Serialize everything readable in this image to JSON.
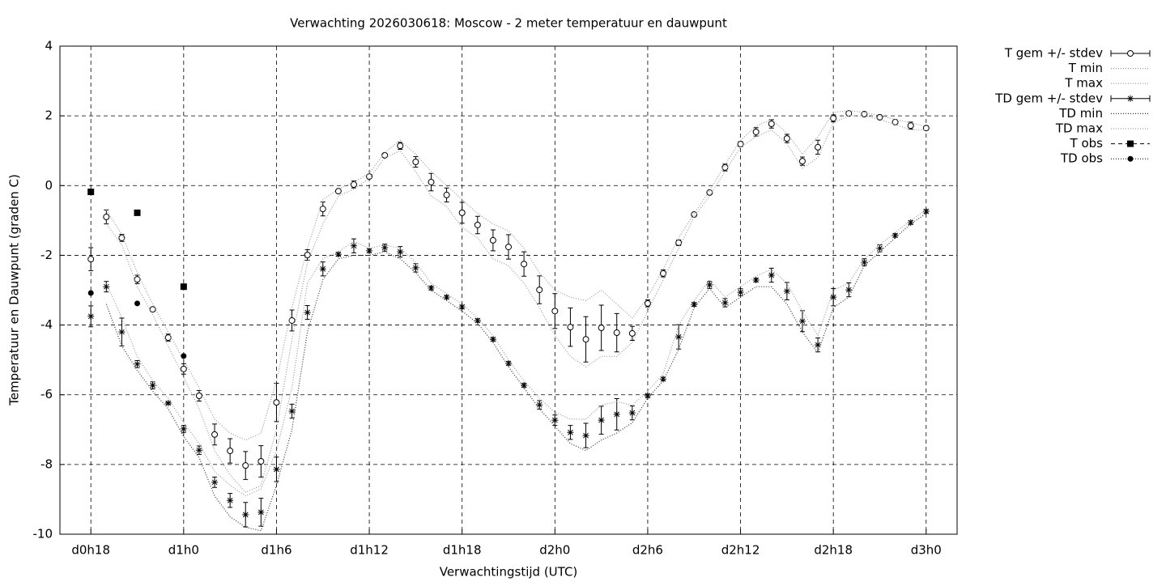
{
  "chart_data": {
    "type": "line",
    "title": "Verwachting 2026030618: Moscow - 2 meter temperatuur en dauwpunt",
    "xlabel": "Verwachtingstijd (UTC)",
    "ylabel": "Temperatuur en Dauwpunt (graden C)",
    "x": [
      18,
      19,
      20,
      21,
      22,
      23,
      24,
      25,
      26,
      27,
      28,
      29,
      30,
      31,
      32,
      33,
      34,
      35,
      36,
      37,
      38,
      39,
      40,
      41,
      42,
      43,
      44,
      45,
      46,
      47,
      48,
      49,
      50,
      51,
      52,
      53,
      54,
      55,
      56,
      57,
      58,
      59,
      60,
      61,
      62,
      63,
      64,
      65,
      66,
      67,
      68,
      69,
      70,
      71,
      72
    ],
    "xlim": [
      16,
      74
    ],
    "xticks": [
      {
        "value": 18,
        "label": "d0h18"
      },
      {
        "value": 24,
        "label": "d1h0"
      },
      {
        "value": 30,
        "label": "d1h6"
      },
      {
        "value": 36,
        "label": "d1h12"
      },
      {
        "value": 42,
        "label": "d1h18"
      },
      {
        "value": 48,
        "label": "d2h0"
      },
      {
        "value": 54,
        "label": "d2h6"
      },
      {
        "value": 60,
        "label": "d2h12"
      },
      {
        "value": 66,
        "label": "d2h18"
      },
      {
        "value": 72,
        "label": "d3h0"
      }
    ],
    "ylim": [
      -10,
      4
    ],
    "yticks": [
      4,
      2,
      0,
      -2,
      -4,
      -6,
      -8,
      -10
    ],
    "grid": true,
    "legend": "outside-right",
    "series": [
      {
        "name": "T gem +/- stdev",
        "color": "#000000",
        "marker": "circle",
        "values": [
          -2.11,
          -0.9,
          -1.5,
          -2.69,
          -3.55,
          -4.36,
          -5.26,
          -6.03,
          -7.14,
          -7.61,
          -8.03,
          -7.91,
          -6.22,
          -3.87,
          -1.99,
          -0.67,
          -0.16,
          0.03,
          0.26,
          0.87,
          1.14,
          0.68,
          0.1,
          -0.27,
          -0.78,
          -1.13,
          -1.57,
          -1.76,
          -2.25,
          -2.99,
          -3.6,
          -4.06,
          -4.41,
          -4.08,
          -4.22,
          -4.24,
          -3.38,
          -2.52,
          -1.64,
          -0.83,
          -0.2,
          0.52,
          1.19,
          1.54,
          1.77,
          1.35,
          0.7,
          1.1,
          1.93,
          2.07,
          2.05,
          1.96,
          1.82,
          1.72,
          1.65
        ],
        "errors": [
          0.33,
          0.2,
          0.1,
          0.12,
          0.05,
          0.1,
          0.15,
          0.15,
          0.3,
          0.35,
          0.4,
          0.45,
          0.55,
          0.3,
          0.15,
          0.2,
          0.05,
          0.1,
          0.05,
          0.05,
          0.1,
          0.15,
          0.25,
          0.2,
          0.3,
          0.25,
          0.3,
          0.35,
          0.35,
          0.4,
          0.5,
          0.55,
          0.65,
          0.65,
          0.55,
          0.2,
          0.1,
          0.1,
          0.08,
          0.03,
          0.03,
          0.1,
          0.07,
          0.12,
          0.12,
          0.12,
          0.12,
          0.2,
          0.1,
          0.05,
          0.03,
          0.05,
          0.03,
          0.1,
          0.05
        ]
      },
      {
        "name": "T min",
        "color": "#999999",
        "marker": "dotted",
        "values": [
          null,
          -1.1,
          -1.7,
          -2.9,
          -3.7,
          -4.6,
          -5.5,
          -6.4,
          -7.6,
          -8.3,
          -8.8,
          -8.6,
          -7.0,
          -4.4,
          -2.2,
          -1.1,
          -0.3,
          -0.1,
          0.2,
          0.8,
          1.0,
          0.4,
          -0.3,
          -0.6,
          -1.2,
          -1.5,
          -2.1,
          -2.3,
          -2.8,
          -3.5,
          -4.3,
          -4.9,
          -5.2,
          -4.9,
          -4.9,
          -4.5,
          -3.6,
          -2.7,
          -1.8,
          -0.9,
          -0.3,
          0.4,
          1.1,
          1.4,
          1.6,
          1.2,
          0.5,
          0.8,
          1.8,
          2.0,
          2.0,
          1.9,
          1.75,
          1.6,
          1.6
        ]
      },
      {
        "name": "T max",
        "color": "#999999",
        "marker": "dotted",
        "values": [
          null,
          -0.7,
          -1.4,
          -2.5,
          -3.4,
          -4.2,
          -5.0,
          -5.8,
          -6.7,
          -7.1,
          -7.3,
          -7.1,
          -5.6,
          -3.5,
          -1.8,
          -0.4,
          -0.1,
          0.1,
          0.35,
          0.95,
          1.3,
          0.9,
          0.4,
          0,
          -0.4,
          -0.8,
          -1.1,
          -1.3,
          -1.8,
          -2.5,
          -3.0,
          -3.2,
          -3.3,
          -3.0,
          -3.4,
          -3.8,
          -3.2,
          -2.4,
          -1.5,
          -0.8,
          -0.15,
          0.6,
          1.3,
          1.7,
          1.9,
          1.5,
          0.9,
          1.4,
          2.1,
          2.15,
          2.1,
          2.0,
          1.9,
          1.8,
          1.7
        ]
      },
      {
        "name": "TD gem +/- stdev",
        "color": "#000000",
        "marker": "star",
        "values": [
          -3.75,
          -2.9,
          -4.2,
          -5.12,
          -5.73,
          -6.24,
          -6.98,
          -7.59,
          -8.51,
          -9.03,
          -9.44,
          -9.37,
          -8.14,
          -6.47,
          -3.64,
          -2.39,
          -1.97,
          -1.73,
          -1.87,
          -1.78,
          -1.9,
          -2.36,
          -2.94,
          -3.2,
          -3.48,
          -3.87,
          -4.41,
          -5.1,
          -5.73,
          -6.29,
          -6.73,
          -7.08,
          -7.17,
          -6.73,
          -6.56,
          -6.52,
          -6.03,
          -5.55,
          -4.34,
          -3.41,
          -2.85,
          -3.36,
          -3.06,
          -2.71,
          -2.57,
          -3.03,
          -3.89,
          -4.57,
          -3.2,
          -2.99,
          -2.2,
          -1.8,
          -1.43,
          -1.06,
          -0.74
        ],
        "errors": [
          0.3,
          0.15,
          0.4,
          0.1,
          0.1,
          0.03,
          0.1,
          0.12,
          0.15,
          0.2,
          0.35,
          0.4,
          0.35,
          0.2,
          0.2,
          0.2,
          0.05,
          0.2,
          0.05,
          0.1,
          0.15,
          0.12,
          0.05,
          0.05,
          0.05,
          0.05,
          0.05,
          0.05,
          0.05,
          0.12,
          0.15,
          0.2,
          0.35,
          0.4,
          0.45,
          0.2,
          0.05,
          0.05,
          0.35,
          0.05,
          0.1,
          0.12,
          0.1,
          0.05,
          0.2,
          0.25,
          0.3,
          0.2,
          0.25,
          0.2,
          0.1,
          0.1,
          0.05,
          0.05,
          0.05
        ]
      },
      {
        "name": "TD min",
        "color": "#333333",
        "marker": "dotted",
        "values": [
          null,
          -3.4,
          -4.6,
          -5.3,
          -5.9,
          -6.4,
          -7.2,
          -7.8,
          -8.9,
          -9.5,
          -9.8,
          -9.9,
          -8.6,
          -7.0,
          -4.2,
          -2.7,
          -2.1,
          -2.0,
          -2.0,
          -1.9,
          -2.1,
          -2.5,
          -3.0,
          -3.3,
          -3.6,
          -3.95,
          -4.5,
          -5.2,
          -5.8,
          -6.4,
          -6.9,
          -7.4,
          -7.6,
          -7.3,
          -7.1,
          -6.8,
          -6.1,
          -5.6,
          -4.7,
          -3.5,
          -2.95,
          -3.5,
          -3.2,
          -2.9,
          -2.9,
          -3.4,
          -4.2,
          -4.8,
          -3.5,
          -3.2,
          -2.3,
          -1.9,
          -1.5,
          -1.1,
          -0.8
        ]
      },
      {
        "name": "TD max",
        "color": "#999999",
        "marker": "dotted",
        "values": [
          null,
          -2.8,
          -3.8,
          -4.9,
          -5.6,
          -6.1,
          -6.8,
          -7.4,
          -8.2,
          -8.6,
          -8.9,
          -8.7,
          -7.6,
          -5.8,
          -2.8,
          -2.1,
          -1.9,
          -1.6,
          -1.8,
          -1.7,
          -1.8,
          -2.2,
          -2.8,
          -3.1,
          -3.4,
          -3.8,
          -4.3,
          -5.0,
          -5.6,
          -6.1,
          -6.5,
          -6.7,
          -6.7,
          -6.3,
          -6.2,
          -6.3,
          -5.9,
          -5.4,
          -4.0,
          -3.3,
          -2.7,
          -3.2,
          -2.9,
          -2.6,
          -2.4,
          -2.8,
          -3.6,
          -4.3,
          -3.0,
          -2.8,
          -2.1,
          -1.7,
          -1.35,
          -1.0,
          -0.7
        ]
      },
      {
        "name": "T obs",
        "color": "#000000",
        "marker": "square",
        "x": [
          18,
          21,
          24
        ],
        "values": [
          -0.18,
          -0.78,
          -2.9
        ]
      },
      {
        "name": "TD obs",
        "color": "#000000",
        "marker": "dot",
        "x": [
          18,
          21,
          24
        ],
        "values": [
          -3.08,
          -3.38,
          -4.89
        ]
      }
    ]
  }
}
